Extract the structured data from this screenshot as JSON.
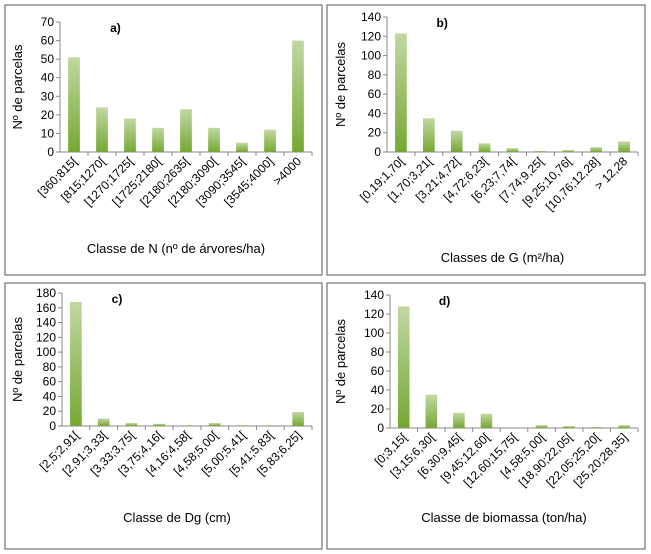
{
  "chart_data": [
    {
      "type": "bar",
      "title": "a)",
      "y_label": "Nº de parcelas",
      "x_label": "Classe de N (nº de árvores/ha)",
      "categories": [
        "[360;815[",
        "[815;1270[",
        "[1270;1725[",
        "[1725;2180[",
        "[2180;2635[",
        "[2180;3090[",
        "[3090;3545[",
        "[3545;4000]",
        ">4000"
      ],
      "values": [
        51,
        24,
        18,
        13,
        23,
        13,
        5,
        12,
        60
      ],
      "color": "#76a832",
      "ylim": [
        0,
        70
      ],
      "yticks": [
        0,
        10,
        20,
        30,
        40,
        50,
        60,
        70
      ]
    },
    {
      "type": "bar",
      "title": "b)",
      "y_label": "Nº de parcelas",
      "x_label": "Classes de G (m²/ha)",
      "categories": [
        "[0,19;1,70[",
        "[1,70;3,21[",
        "[3,21;4,72[",
        "[4,72;6,23[",
        "[6,23;7,74[",
        "[7,74;9,25[",
        "[9,25;10,76[",
        "[10,76;12,28]",
        "> 12,28"
      ],
      "values": [
        123,
        35,
        22,
        9,
        4,
        1,
        2,
        5,
        11
      ],
      "color": "#76a832",
      "ylim": [
        0,
        140
      ],
      "yticks": [
        0,
        20,
        40,
        60,
        80,
        100,
        120,
        140
      ]
    },
    {
      "type": "bar",
      "title": "c)",
      "y_label": "Nº de parcelas",
      "x_label": "Classe de Dg (cm)",
      "categories": [
        "[2,5;2,91[",
        "[2,91;3,33[",
        "[3,33;3,75[",
        "[3,75;4,16[",
        "[4,16;4,58[",
        "[4,58;5,00[",
        "[5,00;5,41[",
        "[5,41;5,83[",
        "[5,83;6,25]"
      ],
      "values": [
        168,
        10,
        4,
        3,
        1,
        4,
        1,
        1,
        19
      ],
      "color": "#76a832",
      "ylim": [
        0,
        180
      ],
      "yticks": [
        0,
        20,
        40,
        60,
        80,
        100,
        120,
        140,
        160,
        180
      ]
    },
    {
      "type": "bar",
      "title": "d)",
      "y_label": "Nº de parcelas",
      "x_label": "Classe de biomassa (ton/ha)",
      "categories": [
        "[0;3,15[",
        "[3,15;6,30[",
        "[6,30;9,45[",
        "[9,45;12,60[",
        "[12,60;15,75[",
        "[4,58;5,00[",
        "[18,90;22,05[",
        "[22,05;25,20[",
        "[25,20;28,35]"
      ],
      "values": [
        128,
        35,
        16,
        15,
        0,
        3,
        2,
        1,
        3
      ],
      "color": "#76a832",
      "ylim": [
        0,
        140
      ],
      "yticks": [
        0,
        20,
        40,
        60,
        80,
        100,
        120,
        140
      ]
    }
  ]
}
